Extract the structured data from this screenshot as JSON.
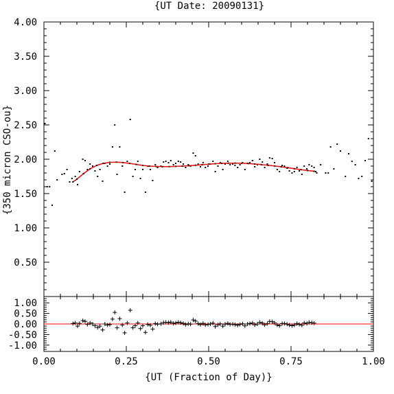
{
  "chart_data": [
    {
      "panel": "main",
      "type": "scatter",
      "title": "{UT Date: 20090131}",
      "ylabel": "{350 micron CSO-ou}",
      "xlim": [
        0.0,
        1.0
      ],
      "ylim": [
        0.0,
        4.0
      ],
      "y_ticks": [
        "0.50",
        "1.00",
        "1.50",
        "2.00",
        "2.50",
        "3.00",
        "3.50",
        "4.00"
      ],
      "y_tick_values": [
        0.5,
        1.0,
        1.5,
        2.0,
        2.5,
        3.0,
        3.5,
        4.0
      ],
      "marker_color": "#000000",
      "fit_color": "#ff0000",
      "series": [
        {
          "x": [
            0.003,
            0.01,
            0.017,
            0.025,
            0.033,
            0.04,
            0.055,
            0.062,
            0.07,
            0.078,
            0.085,
            0.095,
            0.102,
            0.108,
            0.118,
            0.125,
            0.132,
            0.14,
            0.148,
            0.155,
            0.163,
            0.17,
            0.178,
            0.185,
            0.193,
            0.2,
            0.208,
            0.215,
            0.222,
            0.23,
            0.238,
            0.245,
            0.253,
            0.262,
            0.27,
            0.277,
            0.285,
            0.293,
            0.3,
            0.308,
            0.315,
            0.323,
            0.33,
            0.338,
            0.345,
            0.355,
            0.363,
            0.37,
            0.378,
            0.385,
            0.393,
            0.4,
            0.408,
            0.415,
            0.423,
            0.43,
            0.438,
            0.445,
            0.453,
            0.46,
            0.468,
            0.475,
            0.483,
            0.49,
            0.498,
            0.505,
            0.513,
            0.52,
            0.528,
            0.535,
            0.543,
            0.55,
            0.558,
            0.565,
            0.573,
            0.58,
            0.588,
            0.595,
            0.603,
            0.61,
            0.618,
            0.625,
            0.633,
            0.64,
            0.648,
            0.655,
            0.663,
            0.67,
            0.678,
            0.685,
            0.693,
            0.7,
            0.708,
            0.715,
            0.723,
            0.73,
            0.738,
            0.745,
            0.753,
            0.76,
            0.768,
            0.775,
            0.783,
            0.79,
            0.798,
            0.805,
            0.813,
            0.82,
            0.828,
            0.84,
            0.855,
            0.863,
            0.87,
            0.88,
            0.89,
            0.9,
            0.915,
            0.925,
            0.935,
            0.945,
            0.955,
            0.965,
            0.975,
            0.985,
            0.995
          ],
          "y": [
            2.52,
            1.6,
            1.6,
            1.33,
            2.12,
            1.7,
            1.78,
            1.79,
            1.85,
            1.67,
            1.72,
            1.75,
            1.63,
            1.82,
            2.0,
            1.98,
            1.85,
            1.93,
            1.9,
            1.83,
            1.75,
            1.85,
            1.68,
            1.94,
            1.9,
            1.93,
            2.18,
            2.5,
            1.78,
            2.18,
            1.9,
            1.52,
            1.97,
            2.58,
            1.75,
            1.85,
            1.97,
            1.72,
            1.85,
            1.52,
            1.9,
            1.85,
            1.69,
            1.92,
            1.88,
            1.9,
            1.96,
            1.97,
            1.95,
            1.98,
            1.92,
            1.94,
            1.97,
            1.96,
            1.93,
            1.88,
            1.92,
            1.9,
            2.09,
            2.05,
            1.93,
            1.89,
            1.95,
            1.88,
            1.9,
            1.93,
            1.97,
            1.82,
            1.9,
            1.95,
            1.85,
            1.93,
            1.97,
            1.92,
            1.93,
            1.91,
            1.88,
            1.92,
            1.95,
            1.85,
            1.94,
            1.95,
            1.98,
            1.89,
            1.92,
            2.0,
            1.96,
            1.88,
            1.93,
            2.02,
            2.01,
            1.95,
            1.85,
            1.82,
            1.91,
            1.9,
            1.87,
            1.83,
            1.8,
            1.82,
            1.88,
            1.83,
            1.78,
            1.9,
            1.86,
            1.92,
            1.9,
            1.88,
            1.8,
            1.92,
            1.8,
            1.8,
            2.18,
            1.86,
            2.22,
            2.12,
            1.75,
            2.08,
            1.97,
            1.92,
            1.72,
            1.75,
            1.98,
            2.3,
            1.68
          ]
        }
      ],
      "fit": {
        "x": [
          0.088,
          0.1,
          0.12,
          0.14,
          0.16,
          0.18,
          0.2,
          0.22,
          0.24,
          0.26,
          0.28,
          0.3,
          0.32,
          0.34,
          0.36,
          0.38,
          0.4,
          0.42,
          0.44,
          0.46,
          0.48,
          0.5,
          0.52,
          0.54,
          0.56,
          0.58,
          0.6,
          0.62,
          0.64,
          0.66,
          0.68,
          0.7,
          0.72,
          0.74,
          0.76,
          0.78,
          0.8,
          0.82,
          0.825
        ],
        "y": [
          1.67,
          1.71,
          1.79,
          1.86,
          1.91,
          1.94,
          1.955,
          1.958,
          1.952,
          1.94,
          1.925,
          1.91,
          1.9,
          1.895,
          1.892,
          1.893,
          1.896,
          1.9,
          1.906,
          1.913,
          1.92,
          1.928,
          1.935,
          1.94,
          1.943,
          1.944,
          1.942,
          1.937,
          1.93,
          1.922,
          1.912,
          1.902,
          1.89,
          1.876,
          1.862,
          1.848,
          1.836,
          1.825,
          1.82
        ]
      }
    },
    {
      "panel": "residuals",
      "type": "scatter",
      "xlabel": "{UT (Fraction of Day)}",
      "xlim": [
        0.0,
        1.0
      ],
      "ylim": [
        -1.3,
        1.3
      ],
      "x_ticks": [
        "0.00",
        "0.25",
        "0.50",
        "0.75",
        "1.00"
      ],
      "x_tick_values": [
        0.0,
        0.25,
        0.5,
        0.75,
        1.0
      ],
      "y_ticks": [
        "1.00",
        "0.50",
        "0.00",
        "-0.50",
        "-1.00"
      ],
      "y_tick_values": [
        1.0,
        0.5,
        0.0,
        -0.5,
        -1.0
      ],
      "zero_line_color": "#ff0000",
      "series": [
        {
          "x": [
            0.088,
            0.095,
            0.102,
            0.108,
            0.118,
            0.125,
            0.132,
            0.14,
            0.148,
            0.155,
            0.163,
            0.17,
            0.178,
            0.185,
            0.193,
            0.2,
            0.208,
            0.215,
            0.222,
            0.23,
            0.238,
            0.245,
            0.253,
            0.262,
            0.27,
            0.277,
            0.285,
            0.293,
            0.3,
            0.308,
            0.315,
            0.323,
            0.33,
            0.338,
            0.345,
            0.355,
            0.363,
            0.37,
            0.378,
            0.385,
            0.393,
            0.4,
            0.408,
            0.415,
            0.423,
            0.43,
            0.438,
            0.445,
            0.453,
            0.46,
            0.468,
            0.475,
            0.483,
            0.49,
            0.498,
            0.505,
            0.513,
            0.52,
            0.528,
            0.535,
            0.543,
            0.55,
            0.558,
            0.565,
            0.573,
            0.58,
            0.588,
            0.595,
            0.603,
            0.61,
            0.618,
            0.625,
            0.633,
            0.64,
            0.648,
            0.655,
            0.663,
            0.67,
            0.678,
            0.685,
            0.693,
            0.7,
            0.708,
            0.715,
            0.723,
            0.73,
            0.738,
            0.745,
            0.753,
            0.76,
            0.768,
            0.775,
            0.783,
            0.79,
            0.798,
            0.805,
            0.813,
            0.82
          ],
          "y": [
            0.02,
            0.05,
            -0.1,
            0.03,
            0.16,
            0.12,
            -0.02,
            0.05,
            0.0,
            -0.08,
            -0.17,
            -0.1,
            -0.28,
            0.0,
            -0.05,
            -0.03,
            0.23,
            0.55,
            -0.18,
            0.25,
            -0.05,
            -0.42,
            0.05,
            0.65,
            -0.18,
            -0.08,
            0.05,
            -0.22,
            -0.08,
            -0.4,
            -0.02,
            -0.06,
            -0.24,
            0.02,
            -0.01,
            0.01,
            0.07,
            0.08,
            0.06,
            0.09,
            0.03,
            0.05,
            0.08,
            0.06,
            0.03,
            -0.03,
            0.01,
            -0.01,
            0.19,
            0.14,
            0.02,
            -0.03,
            0.03,
            -0.04,
            -0.02,
            0.0,
            0.04,
            -0.12,
            -0.04,
            0.01,
            -0.1,
            -0.01,
            0.03,
            -0.02,
            -0.01,
            -0.03,
            -0.06,
            -0.02,
            0.01,
            -0.09,
            0.0,
            0.02,
            0.05,
            -0.04,
            0.0,
            0.08,
            0.04,
            -0.04,
            0.02,
            0.12,
            0.11,
            0.05,
            -0.05,
            -0.08,
            0.02,
            0.02,
            -0.01,
            -0.05,
            -0.08,
            -0.05,
            0.02,
            -0.02,
            -0.06,
            0.05,
            0.02,
            0.08,
            0.06,
            0.04
          ]
        }
      ]
    }
  ]
}
